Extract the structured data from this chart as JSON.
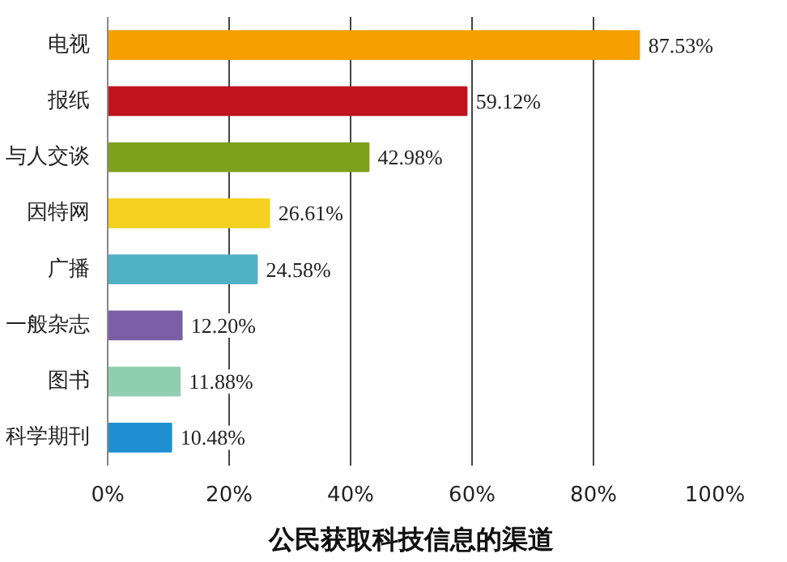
{
  "chart_data": {
    "type": "bar",
    "orientation": "horizontal",
    "title": "公民获取科技信息的渠道",
    "categories": [
      "电视",
      "报纸",
      "与人交谈",
      "因特网",
      "广播",
      "一般杂志",
      "图书",
      "科学期刊"
    ],
    "values": [
      87.53,
      59.12,
      42.98,
      26.61,
      24.58,
      12.2,
      11.88,
      10.48
    ],
    "colors": [
      "#f5a000",
      "#c0141e",
      "#7ea11c",
      "#f5d020",
      "#4fb0c6",
      "#7a5ea6",
      "#8fcfb0",
      "#1e8fd0"
    ],
    "value_labels": [
      "87.53%",
      "59.12%",
      "42.98%",
      "26.61%",
      "24.58%",
      "12.20%",
      "11.88%",
      "10.48%"
    ],
    "xlim": [
      0,
      100
    ],
    "xticks": [
      {
        "value": 0,
        "label": "0%"
      },
      {
        "value": 20,
        "label": "20%"
      },
      {
        "value": 40,
        "label": "40%"
      },
      {
        "value": 60,
        "label": "60%"
      },
      {
        "value": 80,
        "label": "80%"
      },
      {
        "value": 100,
        "label": "100%"
      }
    ],
    "grid": "x"
  }
}
